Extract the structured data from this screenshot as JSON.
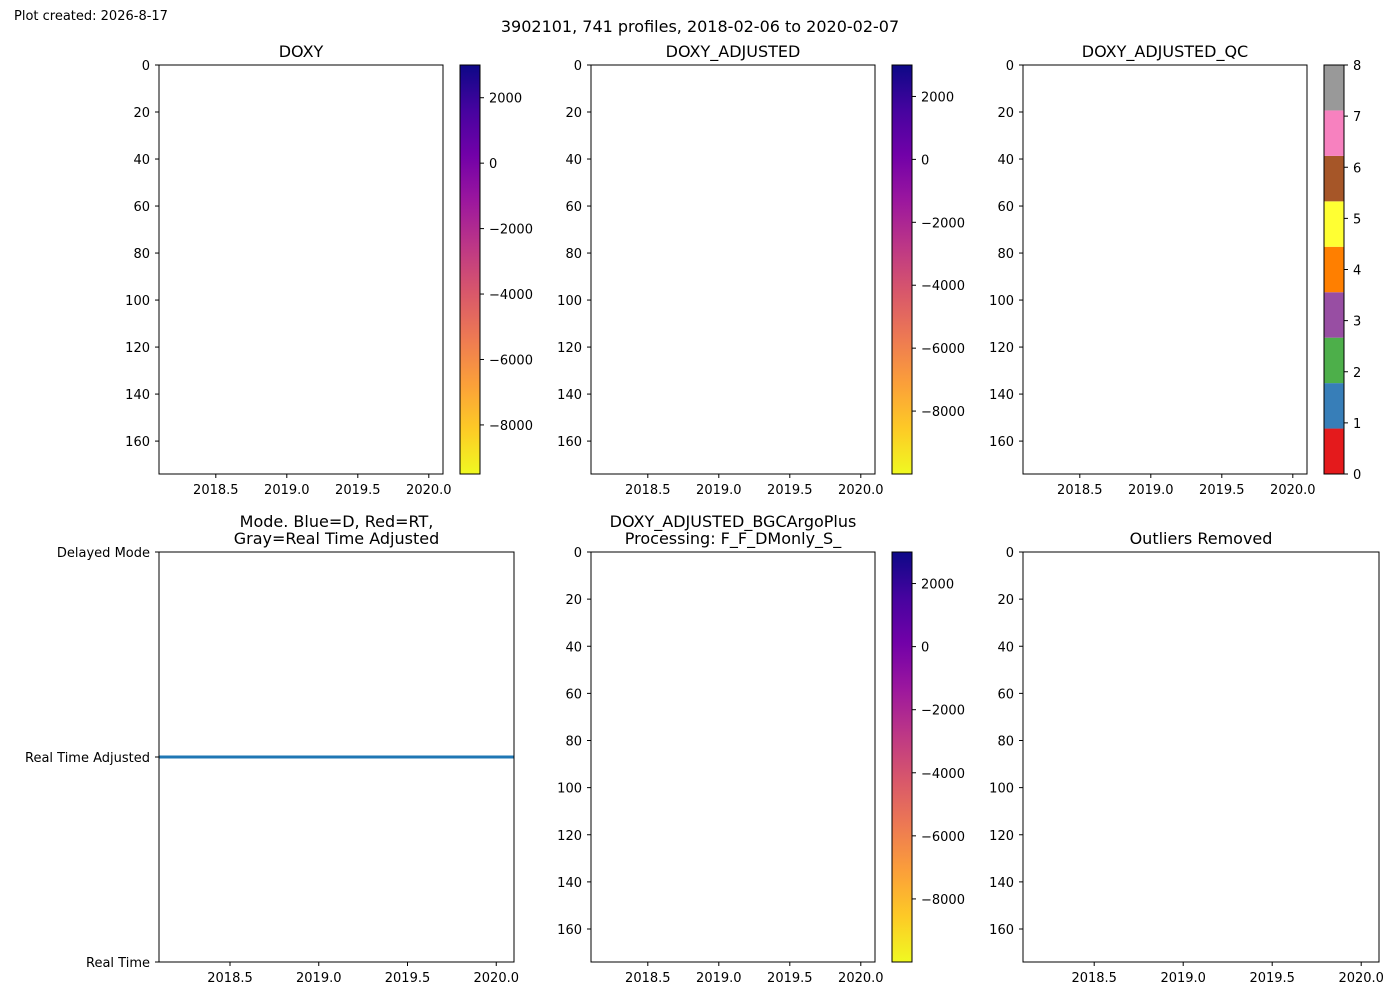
{
  "figure": {
    "created_label": "Plot created: 2026-8-17",
    "suptitle": "3902101, 741 profiles, 2018-02-06 to 2020-02-07"
  },
  "chart_data": [
    {
      "id": "doxy",
      "type": "heatmap",
      "title": [
        "DOXY"
      ],
      "x_ticks": [
        "2018.5",
        "2019.0",
        "2019.5",
        "2020.0"
      ],
      "x_tick_values": [
        2018.5,
        2019.0,
        2019.5,
        2020.0
      ],
      "xlim": [
        2018.1,
        2020.1
      ],
      "y_ticks": [
        "0",
        "20",
        "40",
        "60",
        "80",
        "100",
        "120",
        "140",
        "160"
      ],
      "y_tick_values": [
        0,
        20,
        40,
        60,
        80,
        100,
        120,
        140,
        160
      ],
      "ylim": [
        174,
        0
      ],
      "colorbar": {
        "type": "continuous",
        "colormap": "plasma_r",
        "range": [
          -9500,
          3000
        ],
        "ticks": [
          "2000",
          "0",
          "−2000",
          "−4000",
          "−6000",
          "−8000"
        ],
        "tick_values": [
          2000,
          0,
          -2000,
          -4000,
          -6000,
          -8000
        ]
      }
    },
    {
      "id": "doxy-adjusted",
      "type": "heatmap",
      "title": [
        "DOXY_ADJUSTED"
      ],
      "x_ticks": [
        "2018.5",
        "2019.0",
        "2019.5",
        "2020.0"
      ],
      "x_tick_values": [
        2018.5,
        2019.0,
        2019.5,
        2020.0
      ],
      "xlim": [
        2018.1,
        2020.1
      ],
      "y_ticks": [
        "0",
        "20",
        "40",
        "60",
        "80",
        "100",
        "120",
        "140",
        "160"
      ],
      "y_tick_values": [
        0,
        20,
        40,
        60,
        80,
        100,
        120,
        140,
        160
      ],
      "ylim": [
        174,
        0
      ],
      "colorbar": {
        "type": "continuous",
        "colormap": "plasma_r",
        "range": [
          -10000,
          3000
        ],
        "ticks": [
          "2000",
          "0",
          "−2000",
          "−4000",
          "−6000",
          "−8000"
        ],
        "tick_values": [
          2000,
          0,
          -2000,
          -4000,
          -6000,
          -8000
        ]
      }
    },
    {
      "id": "doxy-adjusted-qc",
      "type": "heatmap",
      "title": [
        "DOXY_ADJUSTED_QC"
      ],
      "x_ticks": [
        "2018.5",
        "2019.0",
        "2019.5",
        "2020.0"
      ],
      "x_tick_values": [
        2018.5,
        2019.0,
        2019.5,
        2020.0
      ],
      "xlim": [
        2018.1,
        2020.1
      ],
      "y_ticks": [
        "0",
        "20",
        "40",
        "60",
        "80",
        "100",
        "120",
        "140",
        "160"
      ],
      "y_tick_values": [
        0,
        20,
        40,
        60,
        80,
        100,
        120,
        140,
        160
      ],
      "ylim": [
        174,
        0
      ],
      "colorbar": {
        "type": "discrete",
        "range": [
          0,
          8
        ],
        "ticks": [
          "0",
          "1",
          "2",
          "3",
          "4",
          "5",
          "6",
          "7",
          "8"
        ],
        "tick_values": [
          0,
          1,
          2,
          3,
          4,
          5,
          6,
          7,
          8
        ],
        "colors": [
          "#e41a1c",
          "#377eb8",
          "#4daf4a",
          "#984ea3",
          "#ff7f00",
          "#ffff33",
          "#a65628",
          "#f781bf",
          "#999999"
        ]
      }
    },
    {
      "id": "mode",
      "type": "line",
      "title": [
        "Mode. Blue=D, Red=RT,",
        "Gray=Real Time Adjusted"
      ],
      "x_ticks": [
        "2018.5",
        "2019.0",
        "2019.5",
        "2020.0"
      ],
      "x_tick_values": [
        2018.5,
        2019.0,
        2019.5,
        2020.0
      ],
      "xlim": [
        2018.1,
        2020.1
      ],
      "y_ticks": [
        "Delayed Mode",
        "Real Time Adjusted",
        "Real Time"
      ],
      "y_tick_values": [
        2,
        1,
        0
      ],
      "ylim": [
        0,
        2
      ],
      "series": [
        {
          "color": "#1f77b4",
          "x": [
            2018.1,
            2020.1
          ],
          "y": [
            1,
            1
          ]
        }
      ]
    },
    {
      "id": "doxy-bgc",
      "type": "heatmap",
      "title": [
        "DOXY_ADJUSTED_BGCArgoPlus",
        "Processing: F_F_DMonly_S_"
      ],
      "x_ticks": [
        "2018.5",
        "2019.0",
        "2019.5",
        "2020.0"
      ],
      "x_tick_values": [
        2018.5,
        2019.0,
        2019.5,
        2020.0
      ],
      "xlim": [
        2018.1,
        2020.1
      ],
      "y_ticks": [
        "0",
        "20",
        "40",
        "60",
        "80",
        "100",
        "120",
        "140",
        "160"
      ],
      "y_tick_values": [
        0,
        20,
        40,
        60,
        80,
        100,
        120,
        140,
        160
      ],
      "ylim": [
        174,
        0
      ],
      "colorbar": {
        "type": "continuous",
        "colormap": "plasma_r",
        "range": [
          -10000,
          3000
        ],
        "ticks": [
          "2000",
          "0",
          "−2000",
          "−4000",
          "−6000",
          "−8000"
        ],
        "tick_values": [
          2000,
          0,
          -2000,
          -4000,
          -6000,
          -8000
        ]
      }
    },
    {
      "id": "outliers",
      "type": "heatmap",
      "title": [
        "Outliers Removed"
      ],
      "x_ticks": [
        "2018.5",
        "2019.0",
        "2019.5",
        "2020.0"
      ],
      "x_tick_values": [
        2018.5,
        2019.0,
        2019.5,
        2020.0
      ],
      "xlim": [
        2018.1,
        2020.1
      ],
      "y_ticks": [
        "0",
        "20",
        "40",
        "60",
        "80",
        "100",
        "120",
        "140",
        "160"
      ],
      "y_tick_values": [
        0,
        20,
        40,
        60,
        80,
        100,
        120,
        140,
        160
      ],
      "ylim": [
        174,
        0
      ]
    }
  ]
}
